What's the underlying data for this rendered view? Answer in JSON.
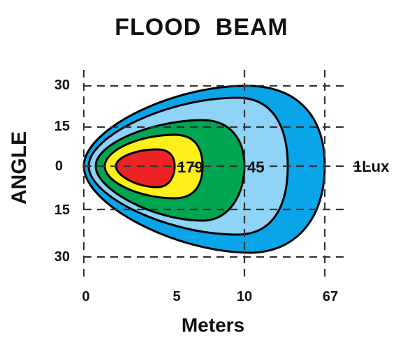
{
  "title": "FLOOD  BEAM",
  "y_axis": {
    "label": "ANGLE",
    "ticks": [
      "30",
      "15",
      "0",
      "15",
      "30"
    ]
  },
  "x_axis": {
    "label": "Meters",
    "ticks": [
      "0",
      "5",
      "10",
      "67"
    ]
  },
  "zones": [
    {
      "name": "outer",
      "color": "#0aa5e8"
    },
    {
      "name": "light-blue",
      "color": "#8fd4f6"
    },
    {
      "name": "green",
      "color": "#00a551"
    },
    {
      "name": "yellow",
      "color": "#ffef1a"
    },
    {
      "name": "red",
      "color": "#ed2224"
    }
  ],
  "value_labels": [
    "179",
    "45"
  ],
  "lux_label": "1Lux"
}
